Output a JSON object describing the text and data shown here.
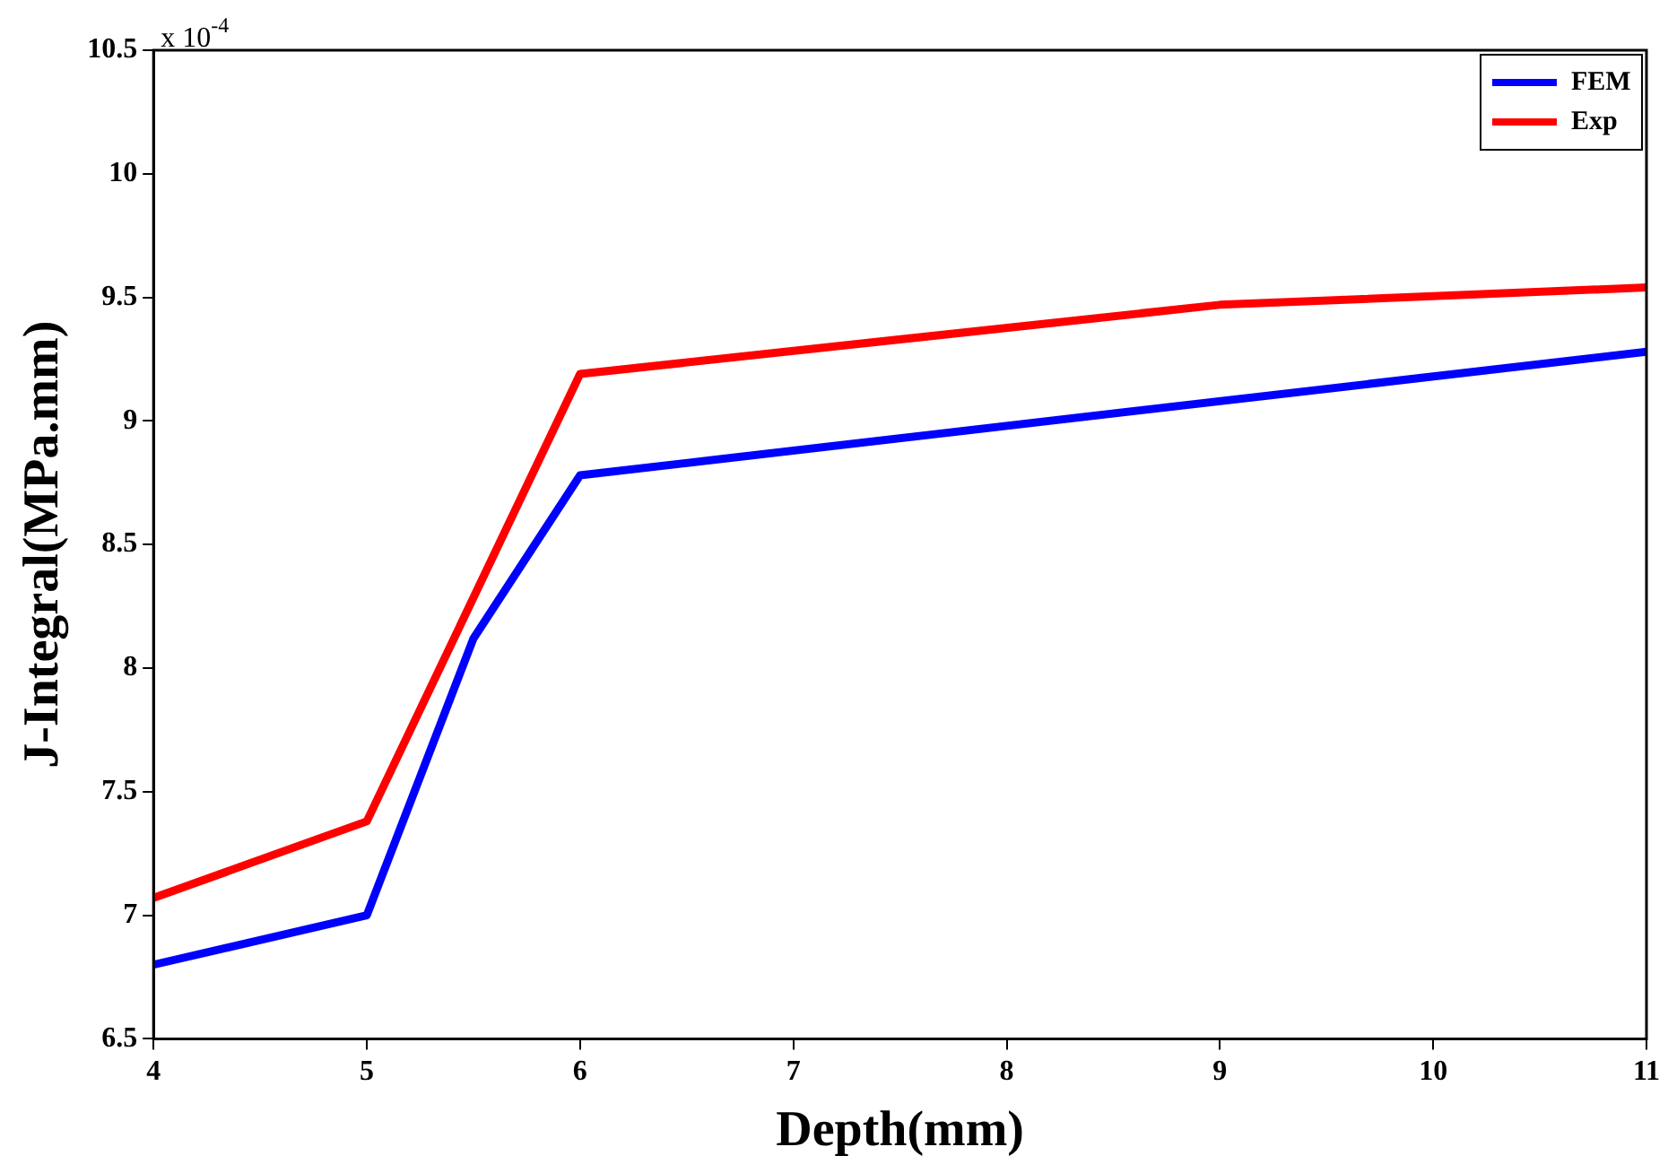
{
  "chart_data": {
    "type": "line",
    "xlabel": "Depth(mm)",
    "ylabel": "J-Integral(MPa.mm)",
    "annotations": [
      "x 10$^{-4}$"
    ],
    "series": [
      {
        "name": "FEM",
        "color": "#0000ff",
        "x": [
          4,
          5,
          5.5,
          6,
          11
        ],
        "values": [
          6.8,
          7.0,
          8.12,
          8.78,
          9.28
        ]
      },
      {
        "name": "Exp",
        "color": "#ff0000",
        "x": [
          4,
          5,
          6,
          9,
          11
        ],
        "values": [
          7.07,
          7.38,
          9.19,
          9.47,
          9.54
        ]
      }
    ],
    "xlim": [
      4,
      11
    ],
    "xticks": [
      4,
      5,
      6,
      7,
      8,
      9,
      10,
      11
    ],
    "ylim": [
      6.5,
      10.5
    ],
    "yticks": [
      6.5,
      7,
      7.5,
      8,
      8.5,
      9,
      9.5,
      10,
      10.5
    ],
    "grid": false,
    "legend": "top right",
    "marker": "none",
    "line_style": "solid"
  }
}
